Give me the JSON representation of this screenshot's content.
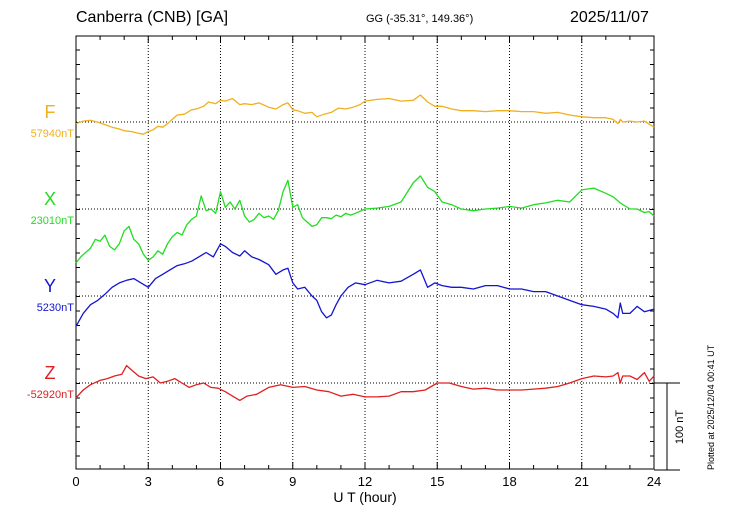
{
  "header": {
    "station": "Canberra (CNB)  [GA]",
    "coords": "GG (-35.31°, 149.36°)",
    "date": "2025/11/07"
  },
  "footnote": "Plotted at 2025/12/04 00:41 UT",
  "chart_data": {
    "type": "line",
    "xlabel": "U T (hour)",
    "xlim": [
      0,
      24
    ],
    "x_ticks": [
      0,
      3,
      6,
      9,
      12,
      15,
      18,
      21,
      24
    ],
    "grid": true,
    "scale_bar": {
      "label": "100 nT",
      "value_nT": 100
    },
    "series": [
      {
        "name": "F",
        "baseline_label": "57940nT",
        "baseline_nT": 57940,
        "color": "#f0b020",
        "x": [
          0,
          0.3,
          0.6,
          1.0,
          1.2,
          1.5,
          1.8,
          2.0,
          2.3,
          2.6,
          2.8,
          3.0,
          3.2,
          3.4,
          3.6,
          3.8,
          4.0,
          4.2,
          4.5,
          4.8,
          5.0,
          5.3,
          5.5,
          5.8,
          6.0,
          6.2,
          6.5,
          6.8,
          7.0,
          7.3,
          7.6,
          8.0,
          8.3,
          8.6,
          8.8,
          9.0,
          9.2,
          9.5,
          9.8,
          10.0,
          10.3,
          10.6,
          10.9,
          11.2,
          11.5,
          11.8,
          12.0,
          12.5,
          13.0,
          13.5,
          14.0,
          14.3,
          14.6,
          14.9,
          15.2,
          15.6,
          16.0,
          16.5,
          17.0,
          17.5,
          18.0,
          18.5,
          19.0,
          19.5,
          20.0,
          20.5,
          21.0,
          21.5,
          22.0,
          22.3,
          22.5,
          22.6,
          22.7,
          23.0,
          23.3,
          23.6,
          24.0
        ],
        "y": [
          57938,
          57941,
          57942,
          57939,
          57937,
          57934,
          57932,
          57930,
          57929,
          57927,
          57926,
          57929,
          57931,
          57935,
          57934,
          57938,
          57943,
          57948,
          57949,
          57954,
          57955,
          57958,
          57963,
          57961,
          57965,
          57964,
          57967,
          57960,
          57961,
          57960,
          57962,
          57957,
          57955,
          57960,
          57962,
          57954,
          57953,
          57950,
          57951,
          57946,
          57949,
          57951,
          57956,
          57955,
          57957,
          57960,
          57964,
          57966,
          57967,
          57964,
          57965,
          57971,
          57963,
          57958,
          57958,
          57955,
          57953,
          57953,
          57952,
          57953,
          57953,
          57952,
          57952,
          57950,
          57951,
          57948,
          57946,
          57945,
          57945,
          57943,
          57938,
          57943,
          57940,
          57941,
          57940,
          57941,
          57934
        ]
      },
      {
        "name": "X",
        "baseline_label": "23010nT",
        "baseline_nT": 23010,
        "color": "#22dd22",
        "x": [
          0,
          0.2,
          0.4,
          0.6,
          0.8,
          1.0,
          1.2,
          1.4,
          1.6,
          1.8,
          2.0,
          2.2,
          2.4,
          2.6,
          2.8,
          3.0,
          3.2,
          3.4,
          3.6,
          3.8,
          4.0,
          4.2,
          4.4,
          4.6,
          4.8,
          5.0,
          5.2,
          5.4,
          5.6,
          5.8,
          6.0,
          6.2,
          6.4,
          6.6,
          6.8,
          7.0,
          7.2,
          7.4,
          7.6,
          7.8,
          8.0,
          8.2,
          8.4,
          8.6,
          8.8,
          9.0,
          9.2,
          9.4,
          9.6,
          9.8,
          10.0,
          10.2,
          10.4,
          10.6,
          10.8,
          11.0,
          11.2,
          11.4,
          11.6,
          12.0,
          12.5,
          13.0,
          13.5,
          14.0,
          14.3,
          14.6,
          14.9,
          15.2,
          15.6,
          16.0,
          16.5,
          17.0,
          17.5,
          18.0,
          18.5,
          19.0,
          19.5,
          20.0,
          20.5,
          21.0,
          21.5,
          22.0,
          22.3,
          22.6,
          23.0,
          23.3,
          23.6,
          23.8,
          24.0
        ],
        "y": [
          22948,
          22955,
          22960,
          22965,
          22975,
          22973,
          22980,
          22967,
          22963,
          22970,
          22985,
          22990,
          22975,
          22970,
          22958,
          22951,
          22955,
          22962,
          22958,
          22970,
          22978,
          22983,
          22980,
          22992,
          22998,
          23002,
          23025,
          23008,
          23010,
          23005,
          23030,
          23012,
          23018,
          23010,
          23020,
          23002,
          22995,
          22998,
          23005,
          23000,
          23002,
          22998,
          23008,
          23030,
          23043,
          23012,
          23015,
          23000,
          22995,
          22990,
          22992,
          23000,
          23000,
          22999,
          23003,
          23001,
          23005,
          23003,
          23005,
          23010,
          23011,
          23013,
          23018,
          23040,
          23048,
          23035,
          23030,
          23018,
          23015,
          23010,
          23008,
          23010,
          23011,
          23013,
          23011,
          23015,
          23017,
          23020,
          23018,
          23032,
          23034,
          23028,
          23024,
          23017,
          23010,
          23010,
          23006,
          23007,
          23002
        ]
      },
      {
        "name": "Y",
        "baseline_label": "5230nT",
        "baseline_nT": 5230,
        "color": "#1515d0",
        "x": [
          0,
          0.3,
          0.6,
          0.9,
          1.2,
          1.5,
          1.8,
          2.1,
          2.4,
          2.7,
          3.0,
          3.3,
          3.6,
          3.9,
          4.2,
          4.5,
          4.8,
          5.1,
          5.4,
          5.7,
          6.0,
          6.2,
          6.5,
          6.8,
          7.0,
          7.3,
          7.6,
          8.0,
          8.3,
          8.6,
          8.8,
          9.0,
          9.2,
          9.5,
          9.8,
          10.0,
          10.2,
          10.4,
          10.6,
          10.8,
          11.0,
          11.3,
          11.6,
          12.0,
          12.5,
          13.0,
          13.5,
          14.0,
          14.3,
          14.6,
          14.9,
          15.2,
          15.6,
          16.0,
          16.5,
          17.0,
          17.5,
          18.0,
          18.5,
          19.0,
          19.5,
          20.0,
          20.5,
          21.0,
          21.5,
          22.0,
          22.3,
          22.5,
          22.6,
          22.7,
          23.0,
          23.3,
          23.6,
          24.0
        ],
        "y": [
          5195,
          5210,
          5220,
          5225,
          5232,
          5240,
          5245,
          5248,
          5250,
          5245,
          5240,
          5250,
          5255,
          5260,
          5265,
          5267,
          5270,
          5275,
          5280,
          5275,
          5290,
          5287,
          5280,
          5276,
          5282,
          5275,
          5272,
          5266,
          5255,
          5260,
          5262,
          5245,
          5238,
          5240,
          5230,
          5225,
          5212,
          5205,
          5208,
          5220,
          5230,
          5240,
          5245,
          5243,
          5248,
          5245,
          5247,
          5255,
          5260,
          5240,
          5245,
          5242,
          5240,
          5240,
          5238,
          5242,
          5242,
          5238,
          5238,
          5235,
          5235,
          5230,
          5225,
          5220,
          5218,
          5215,
          5210,
          5205,
          5222,
          5210,
          5210,
          5218,
          5212,
          5215
        ]
      },
      {
        "name": "Z",
        "baseline_label": "-52920nT",
        "baseline_nT": -52920,
        "color": "#e02020",
        "x": [
          0,
          0.3,
          0.6,
          1.0,
          1.3,
          1.6,
          1.9,
          2.1,
          2.3,
          2.6,
          2.9,
          3.2,
          3.5,
          3.8,
          4.1,
          4.4,
          4.7,
          5.0,
          5.3,
          5.6,
          5.9,
          6.2,
          6.5,
          6.8,
          7.1,
          7.5,
          8.0,
          8.5,
          9.0,
          9.5,
          10.0,
          10.5,
          11.0,
          11.5,
          12.0,
          12.5,
          13.0,
          13.5,
          14.0,
          14.5,
          15.0,
          15.5,
          16.0,
          16.5,
          17.0,
          17.5,
          18.0,
          18.5,
          19.0,
          19.5,
          20.0,
          20.5,
          21.0,
          21.5,
          22.0,
          22.3,
          22.5,
          22.6,
          22.7,
          23.0,
          23.3,
          23.6,
          23.8,
          24.0
        ],
        "y": [
          -52937,
          -52928,
          -52922,
          -52917,
          -52915,
          -52912,
          -52910,
          -52900,
          -52905,
          -52912,
          -52915,
          -52913,
          -52920,
          -52918,
          -52915,
          -52920,
          -52925,
          -52922,
          -52920,
          -52925,
          -52926,
          -52930,
          -52935,
          -52940,
          -52935,
          -52933,
          -52925,
          -52922,
          -52925,
          -52924,
          -52928,
          -52930,
          -52935,
          -52933,
          -52936,
          -52936,
          -52935,
          -52930,
          -52930,
          -52928,
          -52920,
          -52920,
          -52924,
          -52927,
          -52926,
          -52928,
          -52928,
          -52928,
          -52927,
          -52926,
          -52924,
          -52920,
          -52915,
          -52912,
          -52913,
          -52912,
          -52908,
          -52920,
          -52912,
          -52912,
          -52916,
          -52908,
          -52918,
          -52912
        ]
      }
    ]
  }
}
